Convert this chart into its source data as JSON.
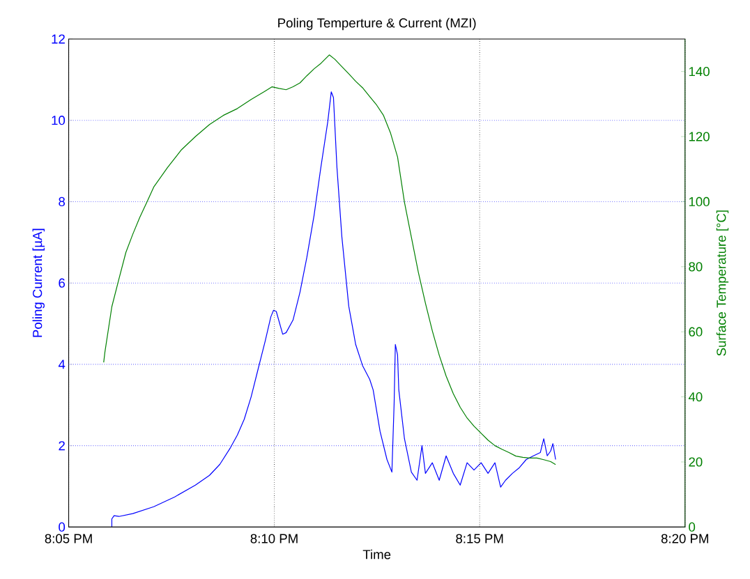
{
  "chart_data": {
    "type": "line",
    "title": "Poling Temperture & Current (MZI)",
    "xlabel": "Time",
    "ylabel": "Poling Current [µA]",
    "y2label": "Surface Temperature [°C]",
    "xlim": [
      20.0833,
      20.3333
    ],
    "xticks": [
      {
        "value": 20.0833,
        "label": "8:05 PM"
      },
      {
        "value": 20.1667,
        "label": "8:10 PM"
      },
      {
        "value": 20.25,
        "label": "8:15 PM"
      },
      {
        "value": 20.3333,
        "label": "8:20 PM"
      }
    ],
    "ylim": [
      0,
      12
    ],
    "yticks": [
      0,
      2,
      4,
      6,
      8,
      10,
      12
    ],
    "y2lim": [
      0,
      150
    ],
    "y2ticks": [
      0,
      20,
      40,
      60,
      80,
      100,
      120,
      140
    ],
    "grid": true,
    "marker": "none",
    "line_style": "solid",
    "series": [
      {
        "color": "#0000ff",
        "x": [
          20.1008,
          20.1008,
          20.1017,
          20.1037,
          20.1093,
          20.1178,
          20.1263,
          20.1347,
          20.1404,
          20.1446,
          20.1489,
          20.1517,
          20.1545,
          20.1573,
          20.1602,
          20.163,
          20.1653,
          20.1664,
          20.1675,
          20.1701,
          20.1715,
          20.1743,
          20.1771,
          20.1799,
          20.1828,
          20.1856,
          20.1884,
          20.1898,
          20.1907,
          20.1921,
          20.1941,
          20.1969,
          20.1997,
          20.2025,
          20.2054,
          20.2068,
          20.2096,
          20.2124,
          20.2144,
          20.2153,
          20.2158,
          20.2167,
          20.2172,
          20.2195,
          20.2223,
          20.2246,
          20.2266,
          20.228,
          20.2308,
          20.2336,
          20.2364,
          20.2393,
          20.2421,
          20.2449,
          20.2477,
          20.2506,
          20.2534,
          20.2562,
          20.2585,
          20.2605,
          20.2633,
          20.2661,
          20.2689,
          20.2718,
          20.2746,
          20.276,
          20.2774,
          20.2788,
          20.2797,
          20.2808
        ],
        "values": [
          0,
          0.2,
          0.28,
          0.26,
          0.33,
          0.5,
          0.74,
          1.03,
          1.27,
          1.54,
          1.95,
          2.26,
          2.65,
          3.2,
          3.9,
          4.57,
          5.17,
          5.33,
          5.3,
          4.74,
          4.78,
          5.09,
          5.77,
          6.63,
          7.65,
          8.85,
          9.97,
          10.7,
          10.56,
          8.85,
          7.14,
          5.43,
          4.49,
          3.97,
          3.63,
          3.37,
          2.35,
          1.66,
          1.35,
          3.03,
          4.49,
          4.23,
          3.37,
          2.17,
          1.35,
          1.15,
          2.0,
          1.32,
          1.58,
          1.15,
          1.75,
          1.32,
          1.03,
          1.58,
          1.4,
          1.58,
          1.32,
          1.58,
          0.98,
          1.15,
          1.32,
          1.46,
          1.66,
          1.75,
          1.83,
          2.17,
          1.75,
          1.87,
          2.05,
          1.66
        ]
      },
      {
        "color": "#008000",
        "axis": "y2",
        "x": [
          20.0975,
          20.098,
          20.1008,
          20.1037,
          20.1065,
          20.1093,
          20.1121,
          20.115,
          20.1178,
          20.1234,
          20.1291,
          20.1347,
          20.1404,
          20.146,
          20.1517,
          20.1573,
          20.163,
          20.1658,
          20.1686,
          20.1715,
          20.1743,
          20.1771,
          20.1799,
          20.1828,
          20.1856,
          20.189,
          20.1912,
          20.1941,
          20.1969,
          20.1997,
          20.2025,
          20.2054,
          20.2082,
          20.211,
          20.2138,
          20.2167,
          20.2195,
          20.2223,
          20.2251,
          20.228,
          20.2308,
          20.2336,
          20.2364,
          20.2393,
          20.2421,
          20.2449,
          20.2477,
          20.2506,
          20.2534,
          20.2562,
          20.259,
          20.2619,
          20.2647,
          20.2675,
          20.2703,
          20.2732,
          20.276,
          20.2788,
          20.2808
        ],
        "values": [
          50.6,
          53.8,
          67.7,
          76.3,
          84.4,
          90,
          95.1,
          99.8,
          104.5,
          110.5,
          116,
          120,
          123.7,
          126.5,
          128.6,
          131.4,
          134,
          135.3,
          134.8,
          134.4,
          135.3,
          136.5,
          138.7,
          140.8,
          142.5,
          145.1,
          143.8,
          141.5,
          139.3,
          137,
          135,
          132.3,
          129.7,
          126.5,
          121.2,
          113.7,
          99.8,
          89.1,
          78.4,
          68.8,
          60.3,
          52.8,
          46.4,
          41,
          36.8,
          33.5,
          31,
          28.8,
          26.7,
          25,
          23.9,
          22.9,
          21.8,
          21.4,
          21.2,
          21.2,
          20.7,
          20.1,
          19.2
        ]
      }
    ]
  }
}
